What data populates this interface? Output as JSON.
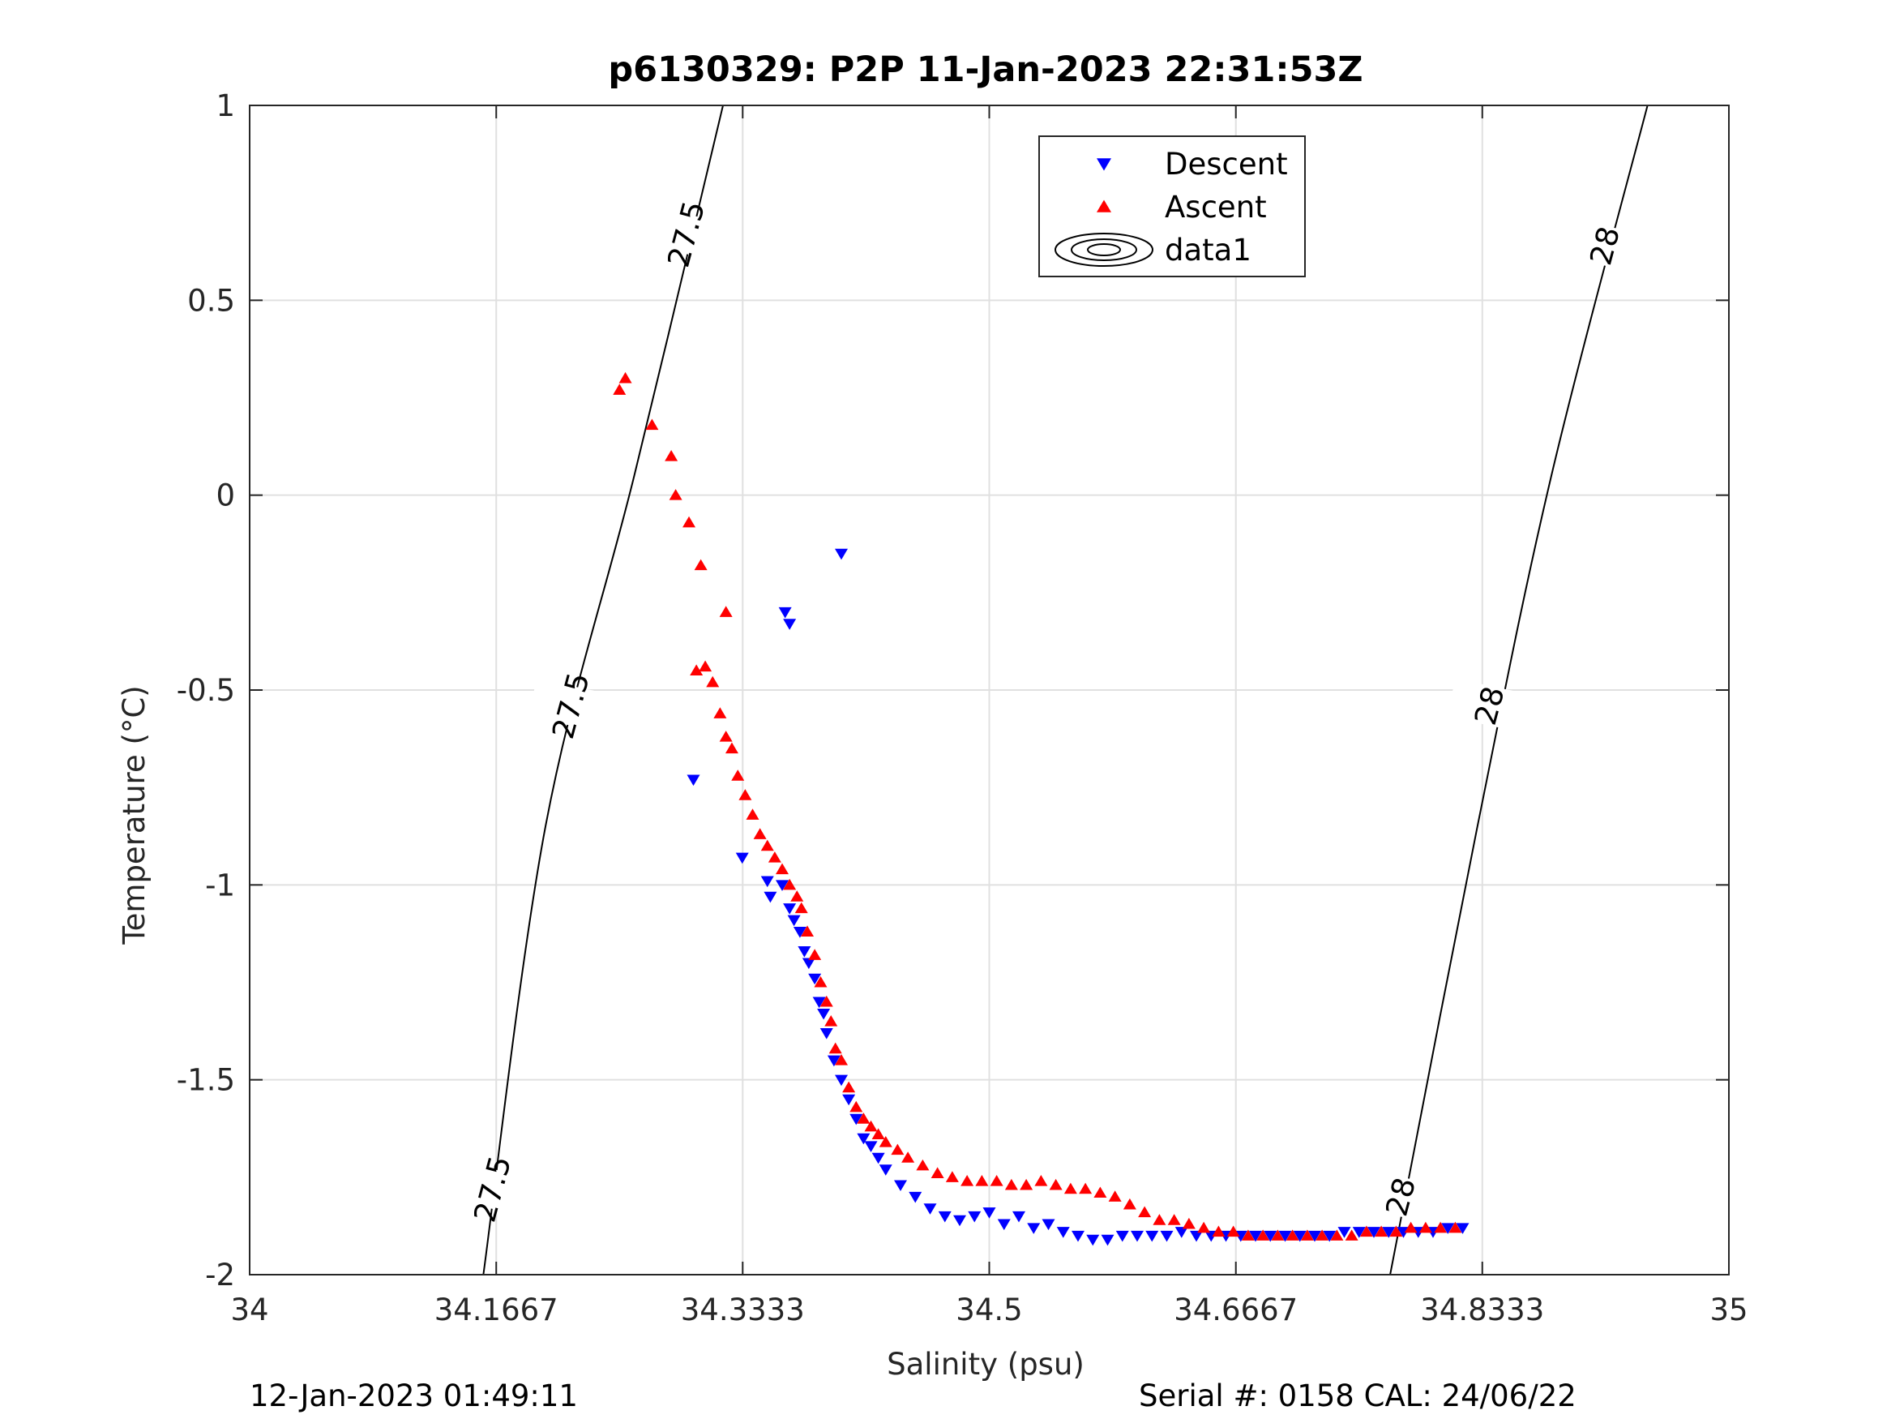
{
  "chart_data": {
    "type": "scatter",
    "title": "p6130329: P2P 11-Jan-2023 22:31:53Z",
    "xlabel": "Salinity (psu)",
    "ylabel": "Temperature (°C)",
    "xlim": [
      34,
      35
    ],
    "ylim": [
      -2,
      1
    ],
    "xticks": [
      34,
      34.1667,
      34.3333,
      34.5,
      34.6667,
      34.8333,
      35
    ],
    "xtick_labels": [
      "34",
      "34.1667",
      "34.3333",
      "34.5",
      "34.6667",
      "34.8333",
      "35"
    ],
    "yticks": [
      -2,
      -1.5,
      -1,
      -0.5,
      0,
      0.5,
      1
    ],
    "ytick_labels": [
      "-2",
      "-1.5",
      "-1",
      "-0.5",
      "0",
      "0.5",
      "1"
    ],
    "grid": true,
    "legend_position": "top-center",
    "colors": {
      "descent": "#0000ff",
      "ascent": "#ff0000",
      "contour": "#000000",
      "grid": "#e0e0e0"
    },
    "series": [
      {
        "name": "Descent",
        "marker": "triangle-down",
        "x": [
          34.4,
          34.362,
          34.365,
          34.3,
          34.333,
          34.35,
          34.352,
          34.36,
          34.365,
          34.368,
          34.372,
          34.375,
          34.378,
          34.382,
          34.385,
          34.388,
          34.39,
          34.395,
          34.4,
          34.405,
          34.41,
          34.415,
          34.42,
          34.425,
          34.43,
          34.44,
          34.45,
          34.46,
          34.47,
          34.48,
          34.49,
          34.5,
          34.51,
          34.52,
          34.53,
          34.54,
          34.55,
          34.56,
          34.57,
          34.58,
          34.59,
          34.6,
          34.61,
          34.62,
          34.63,
          34.64,
          34.65,
          34.66,
          34.67,
          34.68,
          34.69,
          34.7,
          34.71,
          34.72,
          34.73,
          34.74,
          34.75,
          34.76,
          34.77,
          34.78,
          34.79,
          34.8,
          34.81,
          34.82
        ],
        "y": [
          -0.15,
          -0.3,
          -0.33,
          -0.73,
          -0.93,
          -0.99,
          -1.03,
          -1.0,
          -1.06,
          -1.09,
          -1.12,
          -1.17,
          -1.2,
          -1.24,
          -1.3,
          -1.33,
          -1.38,
          -1.45,
          -1.5,
          -1.55,
          -1.6,
          -1.65,
          -1.67,
          -1.7,
          -1.73,
          -1.77,
          -1.8,
          -1.83,
          -1.85,
          -1.86,
          -1.85,
          -1.84,
          -1.87,
          -1.85,
          -1.88,
          -1.87,
          -1.89,
          -1.9,
          -1.91,
          -1.91,
          -1.9,
          -1.9,
          -1.9,
          -1.9,
          -1.89,
          -1.9,
          -1.9,
          -1.9,
          -1.9,
          -1.9,
          -1.9,
          -1.9,
          -1.9,
          -1.9,
          -1.9,
          -1.89,
          -1.89,
          -1.89,
          -1.89,
          -1.89,
          -1.89,
          -1.89,
          -1.88,
          -1.88
        ]
      },
      {
        "name": "Ascent",
        "marker": "triangle-up",
        "x": [
          34.25,
          34.254,
          34.272,
          34.285,
          34.288,
          34.297,
          34.305,
          34.322,
          34.302,
          34.308,
          34.313,
          34.318,
          34.322,
          34.326,
          34.33,
          34.335,
          34.34,
          34.345,
          34.35,
          34.355,
          34.36,
          34.365,
          34.37,
          34.373,
          34.377,
          34.382,
          34.386,
          34.39,
          34.393,
          34.396,
          34.4,
          34.405,
          34.41,
          34.415,
          34.42,
          34.425,
          34.43,
          34.438,
          34.445,
          34.455,
          34.465,
          34.475,
          34.485,
          34.495,
          34.505,
          34.515,
          34.525,
          34.535,
          34.545,
          34.555,
          34.565,
          34.575,
          34.585,
          34.595,
          34.605,
          34.615,
          34.625,
          34.635,
          34.645,
          34.655,
          34.665,
          34.675,
          34.685,
          34.695,
          34.705,
          34.715,
          34.725,
          34.735,
          34.745,
          34.755,
          34.765,
          34.775,
          34.785,
          34.795,
          34.805,
          34.815
        ],
        "y": [
          0.27,
          0.3,
          0.18,
          0.1,
          0.0,
          -0.07,
          -0.18,
          -0.3,
          -0.45,
          -0.44,
          -0.48,
          -0.56,
          -0.62,
          -0.65,
          -0.72,
          -0.77,
          -0.82,
          -0.87,
          -0.9,
          -0.93,
          -0.96,
          -1.0,
          -1.03,
          -1.06,
          -1.12,
          -1.18,
          -1.25,
          -1.3,
          -1.35,
          -1.42,
          -1.45,
          -1.52,
          -1.57,
          -1.6,
          -1.62,
          -1.64,
          -1.66,
          -1.68,
          -1.7,
          -1.72,
          -1.74,
          -1.75,
          -1.76,
          -1.76,
          -1.76,
          -1.77,
          -1.77,
          -1.76,
          -1.77,
          -1.78,
          -1.78,
          -1.79,
          -1.8,
          -1.82,
          -1.84,
          -1.86,
          -1.86,
          -1.87,
          -1.88,
          -1.89,
          -1.89,
          -1.9,
          -1.9,
          -1.9,
          -1.9,
          -1.9,
          -1.9,
          -1.9,
          -1.9,
          -1.89,
          -1.89,
          -1.89,
          -1.88,
          -1.88,
          -1.88,
          -1.88
        ]
      },
      {
        "name": "data1",
        "type": "contour",
        "levels": [
          {
            "level": "27.5",
            "label_positions": [
              [
                34.295,
                0.67
              ],
              [
                34.217,
                -0.54
              ],
              [
                34.164,
                -1.78
              ]
            ],
            "path": [
              [
                34.158,
                -2.0
              ],
              [
                34.2,
                -0.85
              ],
              [
                34.26,
                0.05
              ],
              [
                34.32,
                1.0
              ]
            ]
          },
          {
            "level": "28",
            "label_positions": [
              [
                34.916,
                0.64
              ],
              [
                34.838,
                -0.54
              ],
              [
                34.778,
                -1.8
              ]
            ],
            "path": [
              [
                34.771,
                -2.0
              ],
              [
                34.83,
                -0.85
              ],
              [
                34.88,
                0.05
              ],
              [
                34.945,
                1.0
              ]
            ]
          }
        ]
      }
    ]
  },
  "footer": {
    "timestamp": "12-Jan-2023 01:49:11",
    "serial": "Serial #: 0158  CAL: 24/06/22"
  }
}
